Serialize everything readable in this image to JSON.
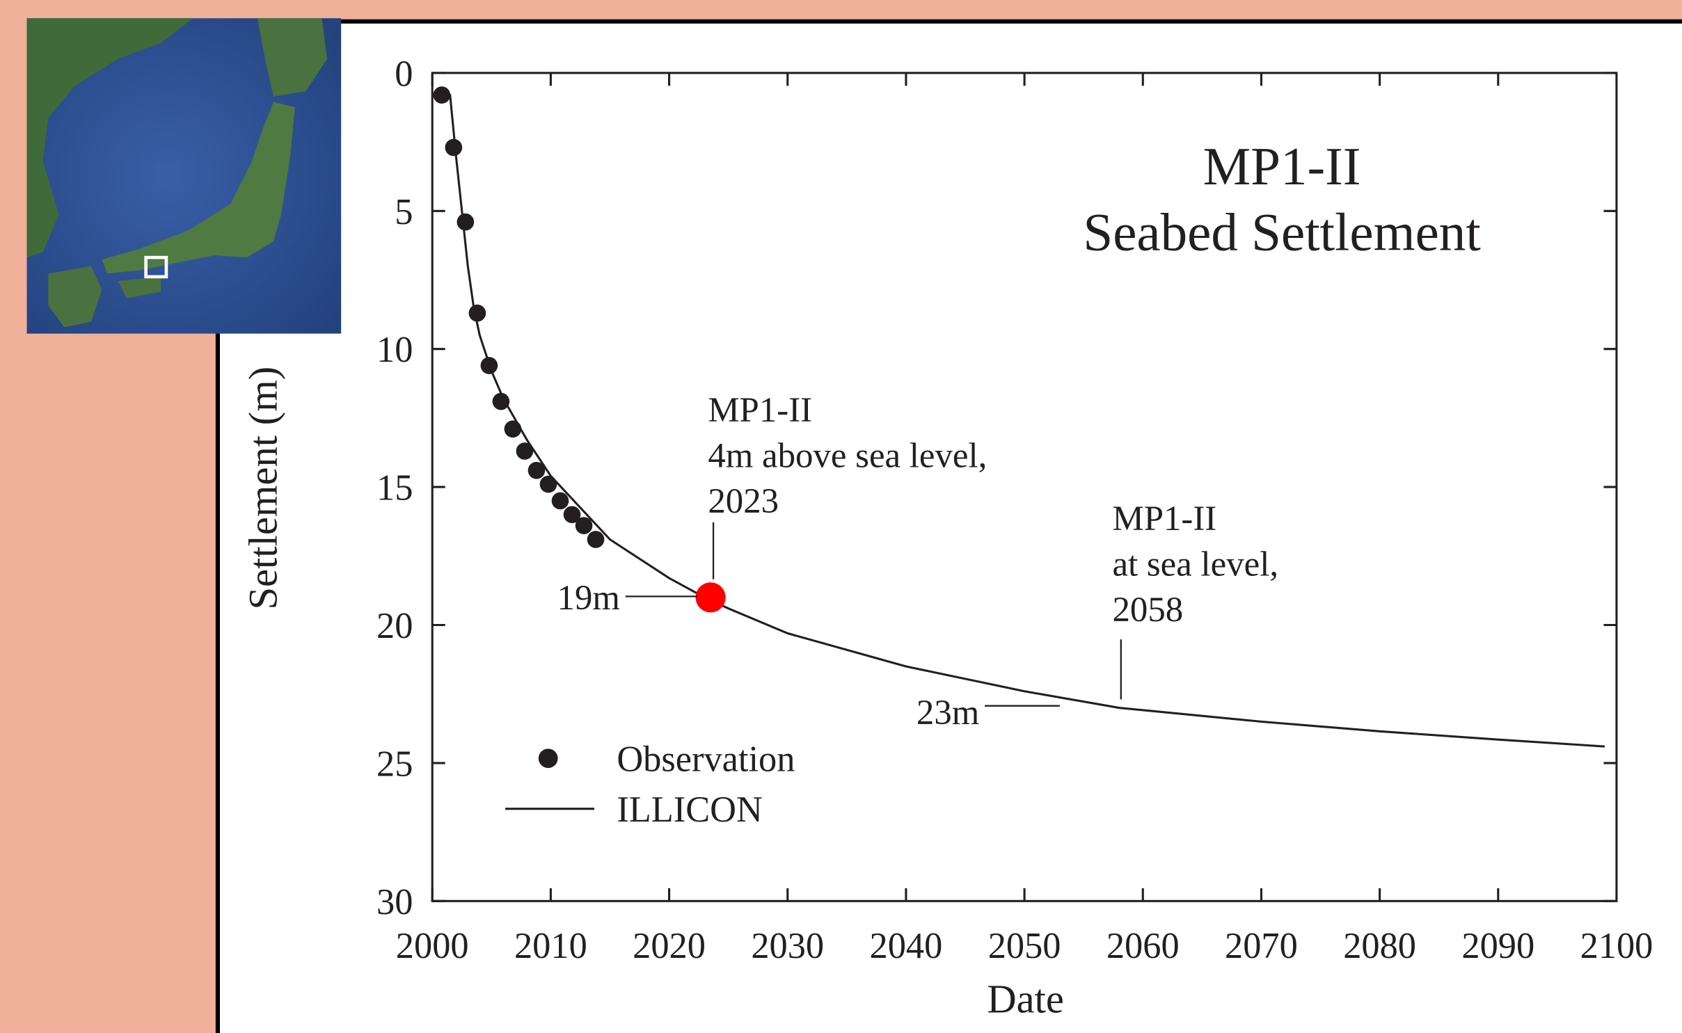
{
  "chart_data": {
    "type": "line",
    "title": "MP1-II",
    "subtitle": "Seabed Settlement",
    "xlabel": "Date",
    "ylabel": "Settlement (m)",
    "xlim": [
      2000,
      2100
    ],
    "xticks": [
      2000,
      2010,
      2020,
      2030,
      2040,
      2050,
      2060,
      2070,
      2080,
      2090,
      2100
    ],
    "ylim": [
      0,
      30
    ],
    "yticks": [
      0,
      5,
      10,
      15,
      20,
      25,
      30
    ],
    "y_inverted": true,
    "legend": "lower left",
    "series": [
      {
        "name": "Observation",
        "type": "scatter",
        "color": "#231f20",
        "x": [
          2000.8,
          2001.8,
          2002.8,
          2003.8,
          2004.8,
          2005.8,
          2006.8,
          2007.8,
          2008.8,
          2009.8,
          2010.8,
          2011.8,
          2012.8,
          2013.8
        ],
        "values": [
          0.8,
          2.7,
          5.4,
          8.7,
          10.6,
          11.9,
          12.9,
          13.7,
          14.4,
          14.9,
          15.5,
          16.0,
          16.4,
          16.9
        ]
      },
      {
        "name": "ILLICON",
        "type": "line",
        "color": "#231f20",
        "x": [
          2000.3,
          2001.5,
          2002,
          2002.5,
          2003,
          2003.5,
          2004,
          2005,
          2006,
          2008,
          2010,
          2015,
          2020,
          2023,
          2025,
          2030,
          2040,
          2050,
          2058,
          2070,
          2080,
          2090,
          2099
        ],
        "values": [
          0.7,
          0.8,
          3,
          5,
          7,
          8.5,
          9.5,
          10.8,
          11.8,
          13.3,
          14.6,
          16.9,
          18.3,
          19,
          19.4,
          20.3,
          21.5,
          22.4,
          23,
          23.5,
          23.85,
          24.15,
          24.4
        ]
      }
    ],
    "highlight": {
      "x": 2023.5,
      "value": 19,
      "color": "#ff0000"
    },
    "annotations": [
      {
        "lines": [
          "MP1-II",
          "4m above sea level,",
          "2023"
        ]
      },
      {
        "lines": [
          "19m"
        ]
      },
      {
        "lines": [
          "MP1-II",
          "at sea level,",
          "2058"
        ]
      },
      {
        "lines": [
          "23m"
        ]
      }
    ]
  }
}
